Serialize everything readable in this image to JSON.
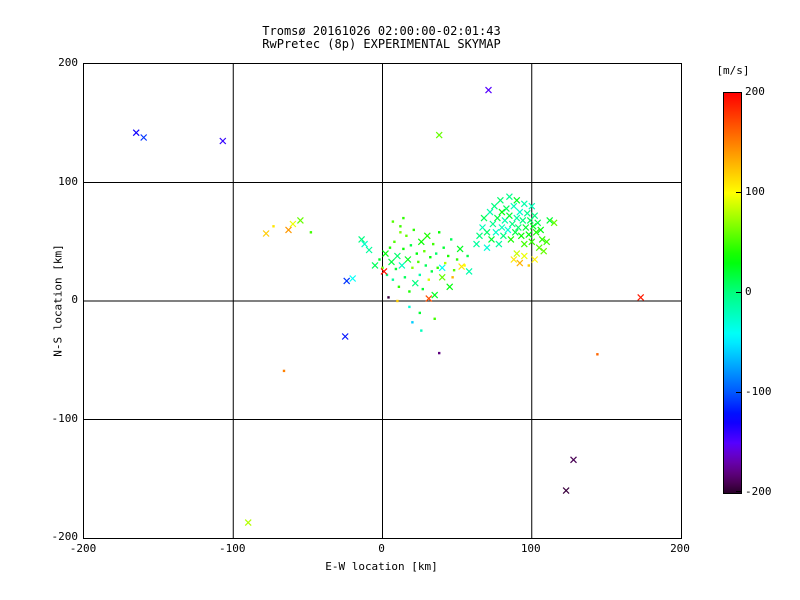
{
  "chart_data": {
    "type": "scatter",
    "title": "Tromsø 20161026 02:00:00-02:01:43",
    "subtitle": "RwPretec (8p) EXPERIMENTAL SKYMAP",
    "xlabel": "E-W location [km]",
    "ylabel": "N-S location [km]",
    "xlim": [
      -200,
      200
    ],
    "ylim": [
      -200,
      200
    ],
    "xticks": [
      -200,
      -100,
      0,
      100,
      200
    ],
    "yticks": [
      -200,
      -100,
      0,
      100,
      200
    ],
    "grid": true,
    "colorbar": {
      "label": "[m/s]",
      "min": -200,
      "max": 200,
      "ticks": [
        200,
        100,
        0,
        -100,
        -200
      ],
      "color_anchors": [
        [
          200,
          0
        ],
        [
          100,
          60
        ],
        [
          0,
          150
        ],
        [
          -100,
          220
        ],
        [
          -150,
          260
        ],
        [
          -200,
          300
        ]
      ]
    },
    "marker_legend": {
      "x": "cross marker",
      "d": "dot marker"
    },
    "points": [
      [
        -165,
        142,
        -130,
        "x"
      ],
      [
        -160,
        138,
        -110,
        "x"
      ],
      [
        -107,
        135,
        -140,
        "x"
      ],
      [
        71,
        178,
        -150,
        "x"
      ],
      [
        38,
        140,
        60,
        "x"
      ],
      [
        -90,
        -187,
        80,
        "x"
      ],
      [
        128,
        -134,
        -190,
        "x"
      ],
      [
        123,
        -160,
        -195,
        "x"
      ],
      [
        173,
        3,
        190,
        "x"
      ],
      [
        144,
        -45,
        160,
        "d"
      ],
      [
        -25,
        -30,
        -120,
        "x"
      ],
      [
        -66,
        -59,
        150,
        "d"
      ],
      [
        38,
        -44,
        -180,
        "d"
      ],
      [
        26,
        -25,
        -20,
        "d"
      ],
      [
        -78,
        57,
        120,
        "x"
      ],
      [
        -73,
        63,
        110,
        "d"
      ],
      [
        -63,
        60,
        140,
        "x"
      ],
      [
        -60,
        65,
        95,
        "x"
      ],
      [
        -55,
        68,
        60,
        "x"
      ],
      [
        -48,
        58,
        50,
        "d"
      ],
      [
        -24,
        17,
        -110,
        "x"
      ],
      [
        -20,
        19,
        -40,
        "x"
      ],
      [
        53,
        29,
        110,
        "x"
      ],
      [
        58,
        25,
        -15,
        "x"
      ],
      [
        -12,
        48,
        -25,
        "x"
      ],
      [
        -9,
        43,
        -10,
        "x"
      ],
      [
        -14,
        52,
        0,
        "x"
      ],
      [
        -5,
        30,
        10,
        "x"
      ],
      [
        -2,
        35,
        25,
        "d"
      ],
      [
        0,
        28,
        60,
        "d"
      ],
      [
        2,
        40,
        30,
        "x"
      ],
      [
        3,
        22,
        0,
        "d"
      ],
      [
        5,
        45,
        40,
        "d"
      ],
      [
        6,
        33,
        15,
        "x"
      ],
      [
        7,
        18,
        -10,
        "d"
      ],
      [
        8,
        50,
        55,
        "d"
      ],
      [
        9,
        27,
        20,
        "d"
      ],
      [
        10,
        38,
        5,
        "x"
      ],
      [
        11,
        12,
        45,
        "d"
      ],
      [
        12,
        63,
        50,
        "d"
      ],
      [
        13,
        30,
        -20,
        "x"
      ],
      [
        14,
        44,
        35,
        "d"
      ],
      [
        15,
        20,
        10,
        "d"
      ],
      [
        16,
        55,
        60,
        "d"
      ],
      [
        17,
        35,
        25,
        "x"
      ],
      [
        18,
        8,
        40,
        "d"
      ],
      [
        19,
        47,
        15,
        "d"
      ],
      [
        20,
        28,
        70,
        "d"
      ],
      [
        21,
        60,
        45,
        "d"
      ],
      [
        22,
        15,
        0,
        "x"
      ],
      [
        23,
        40,
        30,
        "d"
      ],
      [
        24,
        33,
        55,
        "d"
      ],
      [
        25,
        22,
        -15,
        "d"
      ],
      [
        26,
        50,
        35,
        "x"
      ],
      [
        27,
        10,
        20,
        "d"
      ],
      [
        28,
        42,
        60,
        "d"
      ],
      [
        29,
        30,
        10,
        "d"
      ],
      [
        30,
        55,
        40,
        "x"
      ],
      [
        31,
        18,
        90,
        "d"
      ],
      [
        32,
        37,
        30,
        "d"
      ],
      [
        33,
        25,
        15,
        "d"
      ],
      [
        34,
        48,
        50,
        "d"
      ],
      [
        35,
        5,
        25,
        "x"
      ],
      [
        36,
        40,
        5,
        "d"
      ],
      [
        37,
        28,
        45,
        "d"
      ],
      [
        38,
        58,
        35,
        "d"
      ],
      [
        40,
        20,
        60,
        "x"
      ],
      [
        41,
        45,
        20,
        "d"
      ],
      [
        42,
        32,
        80,
        "d"
      ],
      [
        44,
        38,
        40,
        "d"
      ],
      [
        45,
        12,
        30,
        "x"
      ],
      [
        46,
        52,
        10,
        "d"
      ],
      [
        48,
        26,
        55,
        "d"
      ],
      [
        50,
        35,
        45,
        "d"
      ],
      [
        52,
        44,
        25,
        "x"
      ],
      [
        55,
        30,
        100,
        "d"
      ],
      [
        57,
        38,
        15,
        "d"
      ],
      [
        1,
        25,
        195,
        "x"
      ],
      [
        31,
        2,
        170,
        "x"
      ],
      [
        4,
        3,
        -195,
        "d"
      ],
      [
        10,
        0,
        120,
        "d"
      ],
      [
        18,
        -5,
        -30,
        "d"
      ],
      [
        25,
        -10,
        20,
        "d"
      ],
      [
        35,
        -15,
        50,
        "d"
      ],
      [
        20,
        -18,
        -60,
        "d"
      ],
      [
        40,
        28,
        -40,
        "x"
      ],
      [
        47,
        20,
        130,
        "d"
      ],
      [
        7,
        67,
        55,
        "d"
      ],
      [
        14,
        70,
        45,
        "d"
      ],
      [
        12,
        58,
        65,
        "d"
      ],
      [
        63,
        48,
        -10,
        "x"
      ],
      [
        65,
        55,
        0,
        "x"
      ],
      [
        67,
        62,
        -20,
        "x"
      ],
      [
        68,
        70,
        10,
        "x"
      ],
      [
        70,
        45,
        -30,
        "x"
      ],
      [
        70,
        58,
        5,
        "x"
      ],
      [
        72,
        75,
        -15,
        "x"
      ],
      [
        73,
        52,
        20,
        "x"
      ],
      [
        74,
        65,
        -5,
        "x"
      ],
      [
        75,
        80,
        0,
        "x"
      ],
      [
        76,
        58,
        -25,
        "x"
      ],
      [
        77,
        70,
        15,
        "x"
      ],
      [
        78,
        48,
        -10,
        "x"
      ],
      [
        79,
        85,
        5,
        "x"
      ],
      [
        80,
        62,
        -20,
        "x"
      ],
      [
        80,
        75,
        30,
        "x"
      ],
      [
        81,
        55,
        0,
        "x"
      ],
      [
        82,
        68,
        -15,
        "x"
      ],
      [
        83,
        78,
        10,
        "x"
      ],
      [
        84,
        60,
        -30,
        "x"
      ],
      [
        85,
        72,
        20,
        "x"
      ],
      [
        85,
        88,
        -5,
        "x"
      ],
      [
        86,
        52,
        40,
        "x"
      ],
      [
        87,
        65,
        0,
        "x"
      ],
      [
        88,
        80,
        -20,
        "x"
      ],
      [
        89,
        58,
        15,
        "x"
      ],
      [
        90,
        70,
        -10,
        "x"
      ],
      [
        90,
        85,
        25,
        "x"
      ],
      [
        91,
        62,
        5,
        "x"
      ],
      [
        92,
        75,
        -25,
        "x"
      ],
      [
        93,
        55,
        35,
        "x"
      ],
      [
        94,
        68,
        0,
        "x"
      ],
      [
        95,
        82,
        -15,
        "x"
      ],
      [
        95,
        48,
        50,
        "x"
      ],
      [
        96,
        62,
        20,
        "x"
      ],
      [
        97,
        74,
        -5,
        "x"
      ],
      [
        98,
        56,
        30,
        "x"
      ],
      [
        99,
        68,
        10,
        "x"
      ],
      [
        100,
        80,
        -20,
        "x"
      ],
      [
        100,
        50,
        45,
        "x"
      ],
      [
        101,
        63,
        25,
        "x"
      ],
      [
        102,
        72,
        0,
        "x"
      ],
      [
        103,
        58,
        40,
        "x"
      ],
      [
        104,
        66,
        15,
        "x"
      ],
      [
        105,
        45,
        55,
        "x"
      ],
      [
        106,
        60,
        30,
        "x"
      ],
      [
        107,
        52,
        45,
        "x"
      ],
      [
        108,
        42,
        60,
        "x"
      ],
      [
        110,
        50,
        50,
        "x"
      ],
      [
        112,
        68,
        20,
        "x"
      ],
      [
        88,
        35,
        110,
        "x"
      ],
      [
        92,
        32,
        130,
        "x"
      ],
      [
        95,
        38,
        95,
        "x"
      ],
      [
        98,
        30,
        120,
        "d"
      ],
      [
        90,
        40,
        85,
        "x"
      ],
      [
        102,
        35,
        105,
        "x"
      ],
      [
        115,
        66,
        60,
        "x"
      ]
    ]
  }
}
